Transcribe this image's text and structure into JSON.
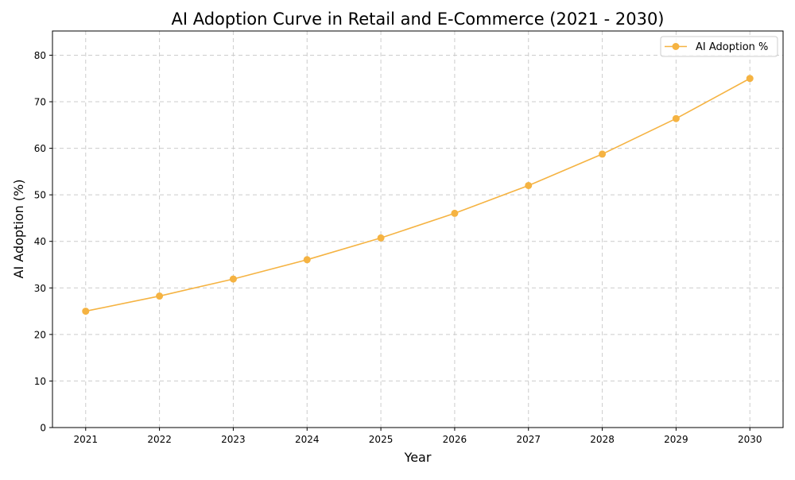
{
  "chart_data": {
    "type": "line",
    "title": "AI Adoption Curve in Retail and E-Commerce (2021 - 2030)",
    "xlabel": "Year",
    "ylabel": "AI Adoption (%)",
    "x": [
      2021,
      2022,
      2023,
      2024,
      2025,
      2026,
      2027,
      2028,
      2029,
      2030
    ],
    "series": [
      {
        "name": "AI Adoption %",
        "color": "#f5b342",
        "marker": "circle",
        "values": [
          25.0,
          28.25,
          31.91,
          36.06,
          40.74,
          46.03,
          52.0,
          58.75,
          66.38,
          75.0
        ]
      }
    ],
    "xlim": [
      2020.55,
      2030.45
    ],
    "ylim": [
      0,
      85.2
    ],
    "xticks": [
      "2021",
      "2022",
      "2023",
      "2024",
      "2025",
      "2026",
      "2027",
      "2028",
      "2029",
      "2030"
    ],
    "yticks": [
      "0",
      "10",
      "20",
      "30",
      "40",
      "50",
      "60",
      "70",
      "80"
    ],
    "grid": true,
    "grid_style": "dashed",
    "legend_position": "top-right"
  }
}
